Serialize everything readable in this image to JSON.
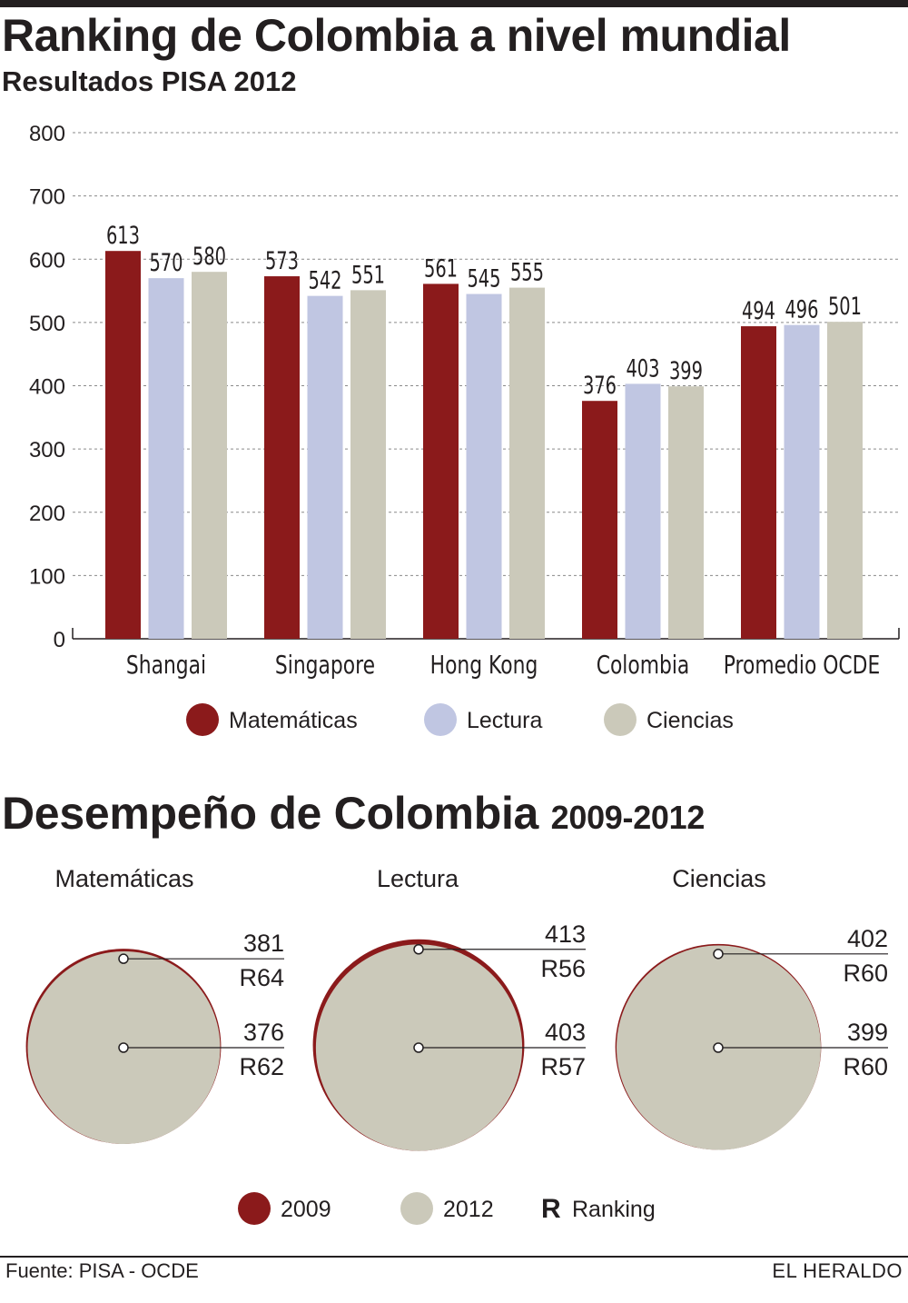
{
  "title": "Ranking de Colombia a nivel mundial",
  "subtitle": "Resultados PISA 2012",
  "section2": {
    "title": "Desempeño de Colombia",
    "years": "2009-2012"
  },
  "footer": {
    "source": "Fuente: PISA - OCDE",
    "brand": "EL HERALDO"
  },
  "colors": {
    "matematicas": "#8b1a1b",
    "lectura": "#c0c6e2",
    "ciencias": "#cbc9ba",
    "y2009": "#8b1a1b",
    "y2012": "#cbc9ba",
    "text": "#231f20",
    "grid": "#8a8a8a"
  },
  "chart_data": [
    {
      "type": "bar",
      "categories": [
        "Shangai",
        "Singapore",
        "Hong Kong",
        "Colombia",
        "Promedio OCDE"
      ],
      "series": [
        {
          "name": "Matemáticas",
          "values": [
            613,
            573,
            561,
            376,
            494
          ]
        },
        {
          "name": "Lectura",
          "values": [
            570,
            542,
            545,
            403,
            496
          ]
        },
        {
          "name": "Ciencias",
          "values": [
            580,
            551,
            555,
            399,
            501
          ]
        }
      ],
      "ylim": [
        0,
        800
      ],
      "yticks": [
        0,
        100,
        200,
        300,
        400,
        500,
        600,
        700,
        800
      ],
      "grid": true,
      "legend": "bottom",
      "data_labels": true
    },
    {
      "type": "pie",
      "title": "Desempeño de Colombia 2009-2012",
      "panels": [
        {
          "name": "Matemáticas",
          "value_2009": 381,
          "rank_2009": "R64",
          "value_2012": 376,
          "rank_2012": "R62"
        },
        {
          "name": "Lectura",
          "value_2009": 413,
          "rank_2009": "R56",
          "value_2012": 403,
          "rank_2012": "R57"
        },
        {
          "name": "Ciencias",
          "value_2009": 402,
          "rank_2009": "R60",
          "value_2012": 399,
          "rank_2012": "R60"
        }
      ],
      "legend": [
        {
          "label": "2009"
        },
        {
          "label": "2012"
        },
        {
          "symbol": "R",
          "label": "Ranking"
        }
      ]
    }
  ]
}
